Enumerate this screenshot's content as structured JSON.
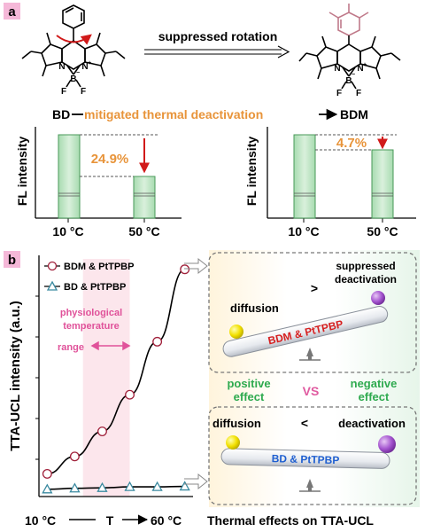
{
  "panel_a": {
    "label": "a",
    "mol_left": {
      "atoms": {
        "N1": "N",
        "N2": "N",
        "B": "B",
        "F1": "F",
        "F2": "F",
        "minus": "−",
        "plus": "+"
      }
    },
    "rotation_label": "suppressed rotation",
    "mol_right": {
      "atoms": {
        "N1": "N",
        "N2": "N",
        "B": "B",
        "F1": "F",
        "F2": "F",
        "minus": "−",
        "plus": "+"
      }
    },
    "compare": {
      "left": "BD",
      "middle": "mitigated thermal deactivation",
      "right": "BDM"
    },
    "bar_left": {
      "ylabel": "FL intensity",
      "drop": "24.9%",
      "x_labels": [
        "10 °C",
        "50 °C"
      ]
    },
    "bar_right": {
      "ylabel": "FL intensity",
      "drop": "4.7%",
      "x_labels": [
        "10 °C",
        "50 °C"
      ]
    }
  },
  "panel_b": {
    "label": "b",
    "chart": {
      "ylabel": "TTA-UCL intensity (a.u.)",
      "x_labels": {
        "left": "10 °C",
        "mid": "T",
        "right": "60 °C"
      },
      "legend": [
        "BDM & PtTPBP",
        "BD  & PtTPBP"
      ],
      "region_label": [
        "physiological",
        "temperature",
        "range"
      ]
    },
    "chart_data": {
      "type": "line",
      "x": [
        10,
        20,
        30,
        40,
        50,
        60
      ],
      "series": [
        {
          "name": "BDM & PtTPBP",
          "values": [
            0.18,
            0.36,
            0.62,
            1.0,
            1.55,
            2.3
          ]
        },
        {
          "name": "BD  & PtTPBP",
          "values": [
            0.02,
            0.03,
            0.035,
            0.045,
            0.045,
            0.05
          ]
        }
      ],
      "ylim": [
        0,
        2.5
      ],
      "xlim": [
        7,
        63
      ],
      "shaded_region": [
        23,
        40
      ]
    },
    "scheme_top": {
      "left": "diffusion",
      "op": ">",
      "right_line1": "suppressed",
      "right_line2": "deactivation",
      "beam": "BDM & PtTPBP"
    },
    "middle": {
      "left_line1": "positive",
      "left_line2": "effect",
      "vs": "VS",
      "right_line1": "negative",
      "right_line2": "effect"
    },
    "scheme_bottom": {
      "left": "diffusion",
      "op": "<",
      "right": "deactivation",
      "beam": "BD & PtTPBP"
    },
    "caption": "Thermal effects on TTA-UCL"
  }
}
